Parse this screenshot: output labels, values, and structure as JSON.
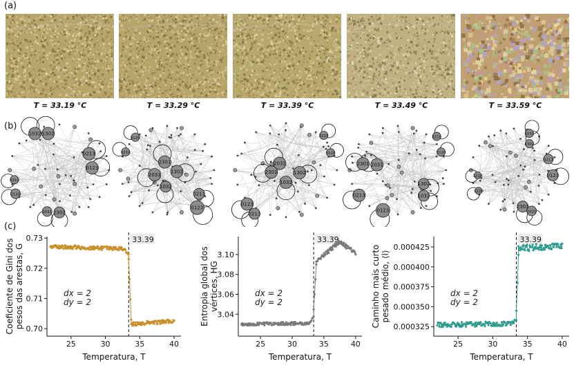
{
  "panels": {
    "a": "(a)",
    "b": "(b)",
    "c": "(c)"
  },
  "microscopy": [
    {
      "label": "T = 33.19 °C",
      "base": "#b8a56a",
      "hi": "#ddd3a4",
      "lo": "#8b7a45"
    },
    {
      "label": "T = 33.29 °C",
      "base": "#b6a468",
      "hi": "#dcd2a2",
      "lo": "#897843"
    },
    {
      "label": "T = 33.39 °C",
      "base": "#b9a86c",
      "hi": "#ddd4a6",
      "lo": "#8c7b47"
    },
    {
      "label": "T = 33.49 °C",
      "base": "#bfb182",
      "hi": "#e3dcbd",
      "lo": "#958659"
    },
    {
      "label": "T = 33.59 °C",
      "base": "#c0a070",
      "hi": "#e6cda3",
      "lo": "#8c6e44"
    }
  ],
  "networks": [
    {
      "nodes": [
        {
          "id": "1032",
          "r": 9
        },
        {
          "id": "1302",
          "r": 9
        },
        {
          "id": "0213",
          "r": 9
        },
        {
          "id": "0123",
          "r": 9
        },
        {
          "id": "3210",
          "r": 6
        },
        {
          "id": "3120",
          "r": 7
        },
        {
          "id": "2031",
          "r": 7
        },
        {
          "id": "2301",
          "r": 8
        }
      ]
    },
    {
      "nodes": [
        {
          "id": "3120",
          "r": 6
        },
        {
          "id": "3210",
          "r": 6
        },
        {
          "id": "2301",
          "r": 9
        },
        {
          "id": "2031",
          "r": 9
        },
        {
          "id": "1302",
          "r": 9
        },
        {
          "id": "1032",
          "r": 8
        },
        {
          "id": "0213",
          "r": 8
        },
        {
          "id": "0123",
          "r": 10
        }
      ]
    },
    {
      "nodes": [
        {
          "id": "3210",
          "r": 6
        },
        {
          "id": "3120",
          "r": 6
        },
        {
          "id": "2031",
          "r": 9
        },
        {
          "id": "2301",
          "r": 9
        },
        {
          "id": "1302",
          "r": 9
        },
        {
          "id": "1032",
          "r": 9
        },
        {
          "id": "0123",
          "r": 9
        },
        {
          "id": "0213",
          "r": 8
        }
      ]
    },
    {
      "nodes": [
        {
          "id": "3210",
          "r": 6
        },
        {
          "id": "3120",
          "r": 6
        },
        {
          "id": "2301",
          "r": 9
        },
        {
          "id": "2031",
          "r": 9
        },
        {
          "id": "1302",
          "r": 8
        },
        {
          "id": "1032",
          "r": 8
        },
        {
          "id": "0213",
          "r": 9
        },
        {
          "id": "0123",
          "r": 10
        }
      ]
    },
    {
      "nodes": [
        {
          "id": "1032",
          "r": 6
        },
        {
          "id": "1302",
          "r": 6
        },
        {
          "id": "0213",
          "r": 7
        },
        {
          "id": "0123",
          "r": 8
        },
        {
          "id": "3210",
          "r": 5
        },
        {
          "id": "3120",
          "r": 5
        },
        {
          "id": "2301",
          "r": 8
        },
        {
          "id": "2031",
          "r": 7
        }
      ]
    }
  ],
  "chart_data": [
    {
      "type": "scatter",
      "ylabel_lines": [
        "Coeficiente de Gini dos",
        "pesos das arestas, G"
      ],
      "xlabel": "Temperatura, T",
      "xlim": [
        21.5,
        41
      ],
      "ylim": [
        0.6975,
        0.7305
      ],
      "xticks": [
        25,
        30,
        35,
        40
      ],
      "yticks": [
        0.7,
        0.71,
        0.72,
        0.73
      ],
      "ytick_labels": [
        "0.70",
        "0.71",
        "0.72",
        "0.73"
      ],
      "color": "#c98f28",
      "transition": 33.39,
      "transition_label": "33.39",
      "annotation": [
        "dx = 2",
        "dy = 2"
      ],
      "segments": [
        {
          "x0": 22.0,
          "x1": 32.8,
          "y0": 0.7272,
          "y1": 0.7264,
          "noise": 0.0006
        },
        {
          "x0": 32.8,
          "x1": 33.39,
          "y0": 0.7262,
          "y1": 0.7245,
          "noise": 0.0004
        },
        {
          "x0": 33.39,
          "x1": 33.75,
          "y0": 0.723,
          "y1": 0.703,
          "noise": 0.0
        },
        {
          "x0": 33.75,
          "x1": 40.0,
          "y0": 0.7015,
          "y1": 0.7025,
          "noise": 0.0006
        }
      ]
    },
    {
      "type": "scatter",
      "ylabel_lines": [
        "Entropia global dos",
        "vértices, HG"
      ],
      "xlabel": "Temperatura, T",
      "xlim": [
        21.5,
        41
      ],
      "ylim": [
        3.018,
        3.118
      ],
      "xticks": [
        25,
        30,
        35,
        40
      ],
      "yticks": [
        3.04,
        3.06,
        3.08,
        3.1
      ],
      "ytick_labels": [
        "3.04",
        "3.06",
        "3.08",
        "3.10"
      ],
      "color": "#7a7a7a",
      "transition": 33.39,
      "transition_label": "33.39",
      "annotation": [
        "dx = 2",
        "dy = 2"
      ],
      "segments": [
        {
          "x0": 22.0,
          "x1": 32.8,
          "y0": 3.03,
          "y1": 3.031,
          "noise": 0.0015
        },
        {
          "x0": 32.8,
          "x1": 33.39,
          "y0": 3.032,
          "y1": 3.038,
          "noise": 0.001
        },
        {
          "x0": 33.39,
          "x1": 33.8,
          "y0": 3.045,
          "y1": 3.09,
          "noise": 0.0
        },
        {
          "x0": 33.8,
          "x1": 37.5,
          "y0": 3.093,
          "y1": 3.113,
          "noise": 0.002
        },
        {
          "x0": 37.5,
          "x1": 40.0,
          "y0": 3.113,
          "y1": 3.101,
          "noise": 0.002
        }
      ]
    },
    {
      "type": "scatter",
      "ylabel_lines": [
        "Caminho mais curto",
        "pesado médio, ⟨l⟩"
      ],
      "xlabel": "Temperatura, T",
      "xlim": [
        21.5,
        41
      ],
      "ylim": [
        0.000313,
        0.000438
      ],
      "xticks": [
        25,
        30,
        35,
        40
      ],
      "yticks": [
        0.000325,
        0.00035,
        0.000375,
        0.0004,
        0.000425
      ],
      "ytick_labels": [
        "0.000325",
        "0.000350",
        "0.000375",
        "0.000400",
        "0.000425"
      ],
      "color": "#2e9c8e",
      "transition": 33.39,
      "transition_label": "33.39",
      "annotation": [
        "dx = 2",
        "dy = 2"
      ],
      "segments": [
        {
          "x0": 22.0,
          "x1": 32.9,
          "y0": 0.000327,
          "y1": 0.000329,
          "noise": 3e-06
        },
        {
          "x0": 32.9,
          "x1": 33.39,
          "y0": 0.00033,
          "y1": 0.000335,
          "noise": 2e-06
        },
        {
          "x0": 33.39,
          "x1": 33.7,
          "y0": 0.000345,
          "y1": 0.000415,
          "noise": 0.0
        },
        {
          "x0": 33.7,
          "x1": 40.0,
          "y0": 0.000423,
          "y1": 0.000427,
          "noise": 4e-06
        }
      ]
    }
  ]
}
